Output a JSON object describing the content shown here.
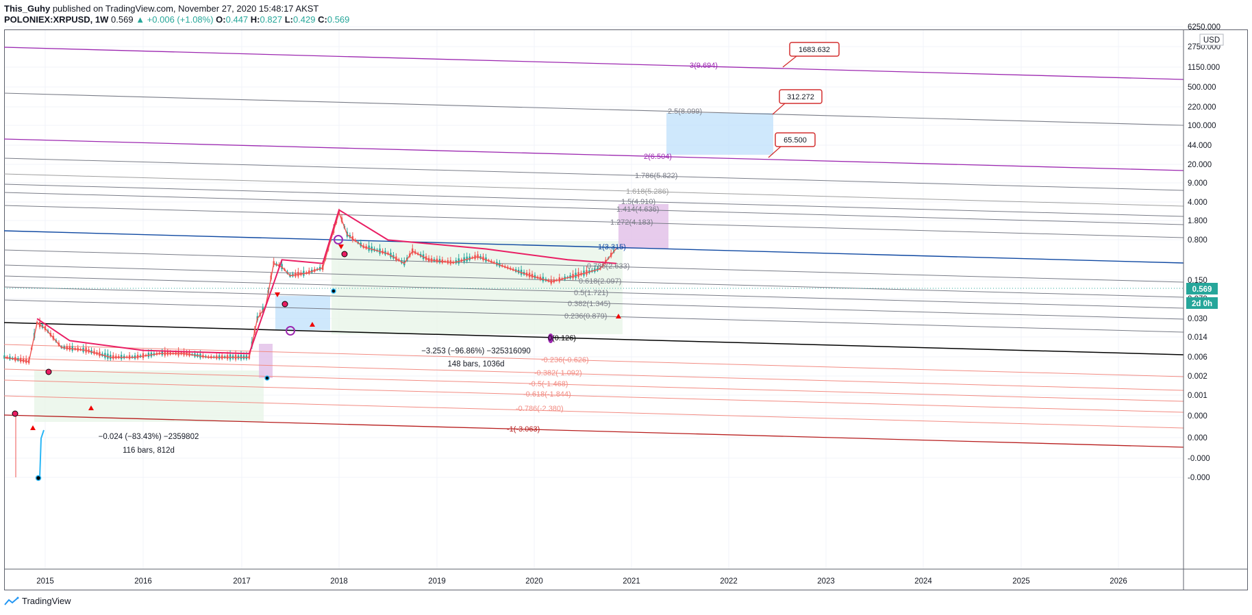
{
  "header": {
    "author": "This_Guhy",
    "published_text": "published on TradingView.com, November 27, 2020 15:48:17 AKST",
    "symbol": "POLONIEX:XRPUSD, 1W",
    "last": "0.569",
    "change": "▲ +0.006 (+1.08%)",
    "o_label": "O:",
    "o_val": "0.447",
    "h_label": "H:",
    "h_val": "0.827",
    "l_label": "L:",
    "l_val": "0.429",
    "c_label": "C:",
    "c_val": "0.569"
  },
  "price_axis": {
    "currency": "USD",
    "labels": [
      "6250.000",
      "2750.000",
      "1150.000",
      "500.000",
      "220.000",
      "100.000",
      "44.000",
      "20.000",
      "9.000",
      "4.000",
      "1.800",
      "0.800",
      "0.150",
      "0.070",
      "0.030",
      "0.014",
      "0.006",
      "0.002",
      "0.001",
      "0.000",
      "0.000",
      "-0.000",
      "-0.000"
    ],
    "current_price": "0.569",
    "countdown": "2d 0h"
  },
  "time_axis": {
    "labels": [
      "2015",
      "2016",
      "2017",
      "2018",
      "2019",
      "2020",
      "2021",
      "2022",
      "2023",
      "2024",
      "2025",
      "2026"
    ]
  },
  "colors": {
    "up": "#26a69a",
    "down": "#ef5350",
    "ma": "#e91e63",
    "purple": "#9c27b0",
    "blue": "#0d47a1",
    "grey": "#787b86",
    "red_fib": "#f28b82",
    "dark_red": "#b71c1c",
    "price_tag": "#26a69a"
  },
  "fib_labels": {
    "f3": "3(9.694)",
    "f25": "2.5(8.099)",
    "f2": "2(6.504)",
    "f1786": "1.786(5.822)",
    "f1618": "1.618(5.286)",
    "f15": "1.5(4.910)",
    "f1414": "1.414(4.636)",
    "f1272": "1.272(4.183)",
    "f1": "1(3.315)",
    "f0786": "0.786(2.633)",
    "f0618": "0.618(2.097)",
    "f05": "0.5(1.721)",
    "f0382": "0.382(1.345)",
    "f0236": "0.236(0.879)",
    "f0": "0(0.126)",
    "n0236": "-0.236(-0.626)",
    "n0382": "-0.382(-1.092)",
    "n05": "-0.5(-1.468)",
    "n0618": "-0.618(-1.844)",
    "n0786": "-0.786(-2.380)",
    "n1": "-1(-3.063)"
  },
  "callouts": {
    "c1": "1683.632",
    "c2": "312.272",
    "c3": "65.500"
  },
  "measures": {
    "m1_change": "−3.253 (−96.86%) −325316090",
    "m1_bars": "148 bars, 1036d",
    "m2_change": "−0.024 (−83.43%) −2359802",
    "m2_bars": "116 bars, 812d"
  },
  "chart_data": {
    "type": "candlestick",
    "symbol": "POLONIEX:XRPUSD",
    "interval": "1W",
    "y_scale": "log",
    "x_range": [
      "2014-08",
      "2026-09"
    ],
    "close_path": [
      [
        "2014-08",
        0.006
      ],
      [
        "2014-11",
        0.005
      ],
      [
        "2014-12",
        0.025
      ],
      [
        "2015-01",
        0.02
      ],
      [
        "2015-03",
        0.009
      ],
      [
        "2015-06",
        0.008
      ],
      [
        "2015-09",
        0.006
      ],
      [
        "2015-12",
        0.006
      ],
      [
        "2016-03",
        0.007
      ],
      [
        "2016-06",
        0.007
      ],
      [
        "2016-09",
        0.006
      ],
      [
        "2016-12",
        0.006
      ],
      [
        "2017-02",
        0.006
      ],
      [
        "2017-03",
        0.03
      ],
      [
        "2017-04",
        0.05
      ],
      [
        "2017-05",
        0.3
      ],
      [
        "2017-06",
        0.26
      ],
      [
        "2017-07",
        0.18
      ],
      [
        "2017-09",
        0.2
      ],
      [
        "2017-11",
        0.25
      ],
      [
        "2017-12",
        0.8
      ],
      [
        "2018-01",
        2.5
      ],
      [
        "2018-02",
        1.0
      ],
      [
        "2018-04",
        0.6
      ],
      [
        "2018-07",
        0.45
      ],
      [
        "2018-09",
        0.3
      ],
      [
        "2018-10",
        0.5
      ],
      [
        "2018-12",
        0.35
      ],
      [
        "2019-03",
        0.31
      ],
      [
        "2019-06",
        0.4
      ],
      [
        "2019-09",
        0.27
      ],
      [
        "2019-12",
        0.19
      ],
      [
        "2020-03",
        0.14
      ],
      [
        "2020-06",
        0.18
      ],
      [
        "2020-09",
        0.24
      ],
      [
        "2020-11",
        0.569
      ]
    ],
    "ma_path": [
      [
        "2014-12",
        0.03
      ],
      [
        "2015-04",
        0.012
      ],
      [
        "2016-01",
        0.008
      ],
      [
        "2017-02",
        0.007
      ],
      [
        "2017-06",
        0.35
      ],
      [
        "2017-11",
        0.3
      ],
      [
        "2018-01",
        2.8
      ],
      [
        "2018-07",
        0.8
      ],
      [
        "2019-07",
        0.55
      ],
      [
        "2020-05",
        0.35
      ],
      [
        "2020-11",
        0.3
      ]
    ]
  }
}
